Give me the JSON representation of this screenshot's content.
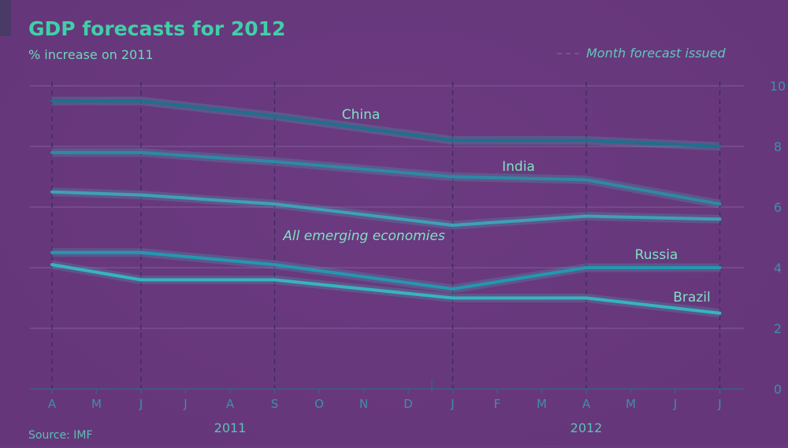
{
  "chart_data": {
    "type": "line",
    "title": "GDP forecasts for 2012",
    "subtitle": "% increase on 2011",
    "legend_note": "Month forecast issued",
    "source": "Source: IMF",
    "x_tick_labels": [
      "A",
      "M",
      "J",
      "J",
      "A",
      "S",
      "O",
      "N",
      "D",
      "J",
      "F",
      "M",
      "A",
      "M",
      "J",
      "J"
    ],
    "year_labels": [
      {
        "label": "2011",
        "between": [
          0,
          8
        ]
      },
      {
        "label": "2012",
        "between": [
          9,
          15
        ]
      }
    ],
    "forecast_points": [
      0,
      2,
      5,
      9,
      12,
      15
    ],
    "ylim": [
      0,
      10
    ],
    "yticks": [
      0,
      2,
      4,
      6,
      8,
      10
    ],
    "y_axis_side": "right",
    "grid": true,
    "series": [
      {
        "name": "China",
        "values": [
          9.5,
          9.5,
          9.0,
          8.2,
          8.2,
          8.0
        ],
        "color": "#1f6f8e"
      },
      {
        "name": "India",
        "values": [
          7.8,
          7.8,
          7.5,
          7.0,
          6.9,
          6.1
        ],
        "color": "#2f88a6"
      },
      {
        "name": "All emerging economies",
        "values": [
          6.5,
          6.4,
          6.1,
          5.4,
          5.7,
          5.6
        ],
        "color": "#3fa0b8"
      },
      {
        "name": "Russia",
        "values": [
          4.5,
          4.5,
          4.1,
          3.3,
          4.0,
          4.0
        ],
        "color": "#2596b2"
      },
      {
        "name": "Brazil",
        "values": [
          4.1,
          3.6,
          3.6,
          3.0,
          3.0,
          2.5
        ],
        "color": "#36b4c0"
      }
    ]
  }
}
